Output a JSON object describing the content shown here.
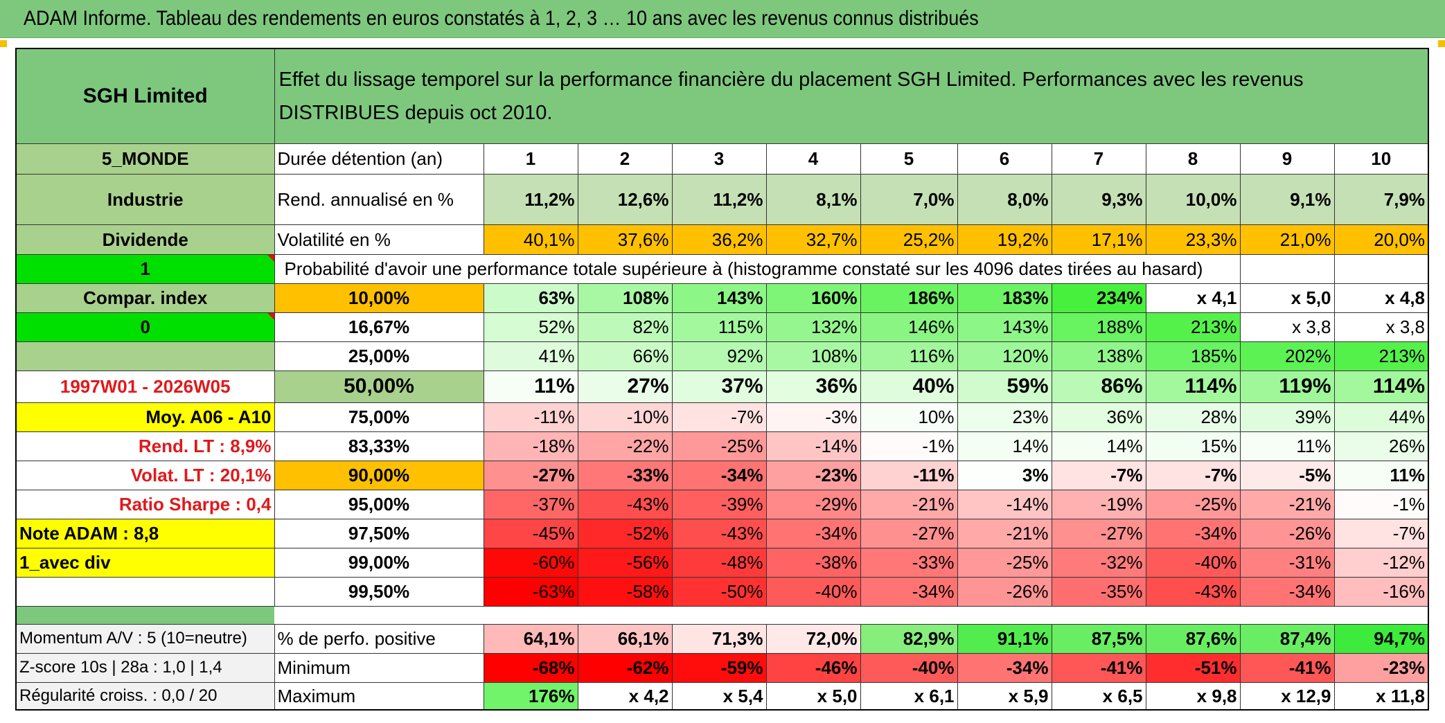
{
  "title": "ADAM Informe. Tableau des rendements en euros constatés à 1, 2, 3 … 10 ans avec les revenus connus distribués",
  "header": {
    "fund_name": "SGH Limited",
    "description": "Effet du lissage temporel sur la performance financière du placement SGH Limited. Performances avec les revenus DISTRIBUES depuis oct 2010."
  },
  "left_labels": {
    "zone": "5_MONDE",
    "sector": "Industrie",
    "dividend": "Dividende",
    "one": "1",
    "compar_index": "Compar. index",
    "zero": "0",
    "period": "1997W01 - 2026W05",
    "moy": "Moy. A06 - A10",
    "rend_lt": "Rend. LT :   8,9%",
    "volat_lt": "Volat. LT :   20,1%",
    "sharpe": "Ratio Sharpe :   0,4",
    "note_adam": "Note ADAM : 8,8",
    "avec_div": "1_avec div",
    "momentum": "Momentum A/V : 5 (10=neutre)",
    "zscore": "Z-score 10s | 28a : 1,0 | 1,4",
    "regularite": "Régularité croiss. : 0,0 / 20"
  },
  "row_labels": {
    "duree": "Durée détention (an)",
    "rend": "Rend. annualisé en %",
    "volat": "Volatilité en %",
    "proba": "Probabilité d'avoir une performance totale supérieure à (histogramme constaté sur les 4096 dates tirées au hasard)",
    "pct_positive": "% de perfo. positive",
    "minimum": "Minimum",
    "maximum": "Maximum"
  },
  "durations": [
    "1",
    "2",
    "3",
    "4",
    "5",
    "6",
    "7",
    "8",
    "9",
    "10"
  ],
  "rend_annualise": [
    "11,2%",
    "12,6%",
    "11,2%",
    "8,1%",
    "7,0%",
    "8,0%",
    "9,3%",
    "10,0%",
    "9,1%",
    "7,9%"
  ],
  "volatilite": [
    "40,1%",
    "37,6%",
    "36,2%",
    "32,7%",
    "25,2%",
    "19,2%",
    "17,1%",
    "23,3%",
    "21,0%",
    "20,0%"
  ],
  "proba_rows": [
    {
      "threshold": "10,00%",
      "values": [
        "63%",
        "108%",
        "143%",
        "160%",
        "186%",
        "183%",
        "234%",
        "x 4,1",
        "x 5,0",
        "x 4,8"
      ]
    },
    {
      "threshold": "16,67%",
      "values": [
        "52%",
        "82%",
        "115%",
        "132%",
        "146%",
        "143%",
        "188%",
        "213%",
        "x 3,8",
        "x 3,8"
      ]
    },
    {
      "threshold": "25,00%",
      "values": [
        "41%",
        "66%",
        "92%",
        "108%",
        "116%",
        "120%",
        "138%",
        "185%",
        "202%",
        "213%"
      ]
    },
    {
      "threshold": "50,00%",
      "values": [
        "11%",
        "27%",
        "37%",
        "36%",
        "40%",
        "59%",
        "86%",
        "114%",
        "119%",
        "114%"
      ]
    },
    {
      "threshold": "75,00%",
      "values": [
        "-11%",
        "-10%",
        "-7%",
        "-3%",
        "10%",
        "23%",
        "36%",
        "28%",
        "39%",
        "44%"
      ]
    },
    {
      "threshold": "83,33%",
      "values": [
        "-18%",
        "-22%",
        "-25%",
        "-14%",
        "-1%",
        "14%",
        "14%",
        "15%",
        "11%",
        "26%"
      ]
    },
    {
      "threshold": "90,00%",
      "values": [
        "-27%",
        "-33%",
        "-34%",
        "-23%",
        "-11%",
        "3%",
        "-7%",
        "-7%",
        "-5%",
        "11%"
      ]
    },
    {
      "threshold": "95,00%",
      "values": [
        "-37%",
        "-43%",
        "-39%",
        "-29%",
        "-21%",
        "-14%",
        "-19%",
        "-25%",
        "-21%",
        "-1%"
      ]
    },
    {
      "threshold": "97,50%",
      "values": [
        "-45%",
        "-52%",
        "-43%",
        "-34%",
        "-27%",
        "-21%",
        "-27%",
        "-34%",
        "-26%",
        "-7%"
      ]
    },
    {
      "threshold": "99,00%",
      "values": [
        "-60%",
        "-56%",
        "-48%",
        "-38%",
        "-33%",
        "-25%",
        "-32%",
        "-40%",
        "-31%",
        "-12%"
      ]
    },
    {
      "threshold": "99,50%",
      "values": [
        "-63%",
        "-58%",
        "-50%",
        "-40%",
        "-34%",
        "-26%",
        "-35%",
        "-43%",
        "-34%",
        "-16%"
      ]
    }
  ],
  "pct_positive": [
    "64,1%",
    "66,1%",
    "71,3%",
    "72,0%",
    "82,9%",
    "91,1%",
    "87,5%",
    "87,6%",
    "87,4%",
    "94,7%"
  ],
  "minimum": [
    "-68%",
    "-62%",
    "-59%",
    "-46%",
    "-40%",
    "-34%",
    "-41%",
    "-51%",
    "-41%",
    "-23%"
  ],
  "maximum": [
    "176%",
    "x 4,2",
    "x 5,4",
    "x 5,0",
    "x 6,1",
    "x 5,9",
    "x 6,5",
    "x 9,8",
    "x 12,9",
    "x 11,8"
  ],
  "colors": {
    "header_green": "#7ec87e",
    "light_green": "#a9d18e",
    "pale_green": "#c5e0b4",
    "bright_green": "#00e000",
    "orange": "#ffc000",
    "yellow": "#ffff00",
    "red_text": "#e0191b"
  }
}
